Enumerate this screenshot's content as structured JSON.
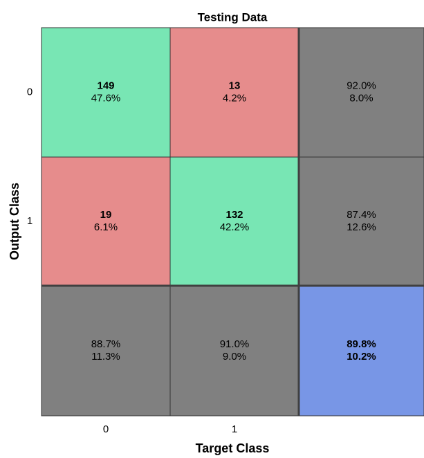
{
  "chart_data": {
    "type": "confusion",
    "title": "Testing Data",
    "xlabel": "Target Class",
    "ylabel": "Output Class",
    "categories": [
      "0",
      "1"
    ],
    "counts": [
      [
        149,
        13
      ],
      [
        19,
        132
      ]
    ],
    "percents": [
      [
        47.6,
        4.2
      ],
      [
        6.1,
        42.2
      ]
    ],
    "percent_labels": [
      [
        "47.6%",
        "4.2%"
      ],
      [
        "6.1%",
        "42.2%"
      ]
    ],
    "row_summary": [
      {
        "correct": 92.0,
        "correct_label": "92.0%",
        "wrong": 8.0,
        "wrong_label": "8.0%"
      },
      {
        "correct": 87.4,
        "correct_label": "87.4%",
        "wrong": 12.6,
        "wrong_label": "12.6%"
      }
    ],
    "column_summary": [
      {
        "correct": 88.7,
        "correct_label": "88.7%",
        "wrong": 11.3,
        "wrong_label": "11.3%"
      },
      {
        "correct": 91.0,
        "correct_label": "91.0%",
        "wrong": 9.0,
        "wrong_label": "9.0%"
      }
    ],
    "overall": {
      "correct": 89.8,
      "correct_label": "89.8%",
      "wrong": 10.2,
      "wrong_label": "10.2%"
    },
    "colors": {
      "correct": "#78e6b4",
      "wrong": "#e68c8c",
      "summary": "#808080",
      "overall": "#7896e6",
      "correct_text": "#147314",
      "wrong_text": "#731414"
    }
  }
}
